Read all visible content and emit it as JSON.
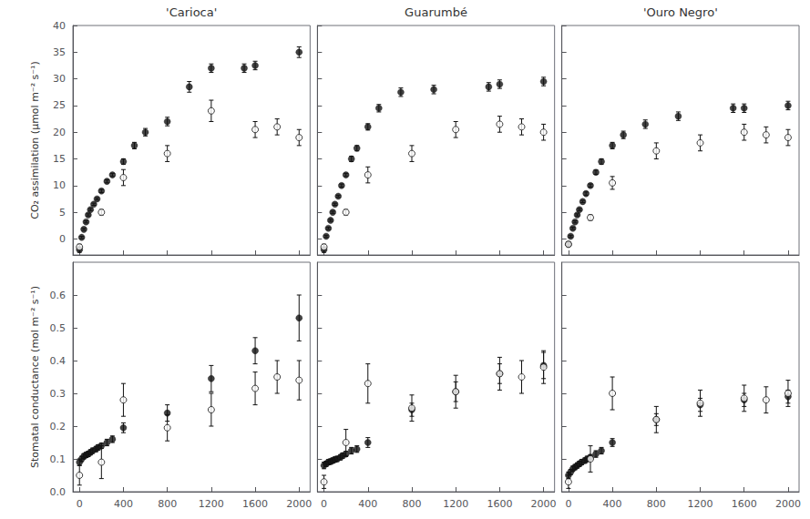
{
  "chart_data": [
    {
      "type": "scatter",
      "title": "'Carioca'",
      "ylabel": "CO₂ assimilation (μmol m⁻² s⁻¹)",
      "xlim": [
        -60,
        2100
      ],
      "xticks": [
        0,
        400,
        800,
        1200,
        1600,
        2000
      ],
      "ylim": [
        -3,
        40
      ],
      "yticks": [
        0,
        5,
        10,
        15,
        20,
        25,
        30,
        35,
        40
      ],
      "grid": false,
      "tick_labels": "y",
      "series": [
        {
          "color": "#111111",
          "marker": "filled_circle",
          "x": [
            0,
            20,
            40,
            60,
            80,
            100,
            130,
            160,
            200,
            250,
            300,
            400,
            500,
            600,
            800,
            1000,
            1200,
            1500,
            1600,
            2000
          ],
          "values": [
            -2.0,
            0.3,
            1.8,
            3.2,
            4.5,
            5.5,
            6.5,
            7.5,
            9.0,
            10.8,
            12.0,
            14.5,
            17.5,
            20.0,
            22.0,
            28.5,
            32.0,
            32.0,
            32.5,
            35.0
          ],
          "yerr": [
            0.5,
            0.2,
            0.2,
            0.2,
            0.2,
            0.2,
            0.2,
            0.2,
            0.3,
            0.3,
            0.3,
            0.5,
            0.6,
            0.7,
            0.8,
            1.0,
            0.8,
            0.8,
            0.8,
            1.0
          ]
        },
        {
          "color": "#111111",
          "marker": "open_circle",
          "x": [
            0,
            200,
            400,
            800,
            1200,
            1600,
            1800,
            2000
          ],
          "values": [
            -1.5,
            5.0,
            11.5,
            16.0,
            24.0,
            20.5,
            21.0,
            19.0
          ],
          "yerr": [
            0.5,
            0.5,
            1.5,
            1.5,
            2.0,
            1.5,
            1.5,
            1.5
          ]
        }
      ]
    },
    {
      "type": "scatter",
      "ylabel": "Stomatal conductance (mol m⁻² s⁻¹)",
      "xlim": [
        -60,
        2100
      ],
      "xticks": [
        0,
        400,
        800,
        1200,
        1600,
        2000
      ],
      "ylim": [
        0.0,
        0.7
      ],
      "yticks": [
        {
          "value": 0.0,
          "label": "0.0"
        },
        0.1,
        0.2,
        0.3,
        0.4,
        0.5,
        0.6
      ],
      "grid": false,
      "series": [
        {
          "color": "#111111",
          "marker": "filled_circle",
          "x": [
            0,
            20,
            40,
            60,
            80,
            100,
            120,
            150,
            170,
            200,
            250,
            300,
            400,
            800,
            1200,
            1600,
            2000
          ],
          "values": [
            0.09,
            0.1,
            0.108,
            0.112,
            0.115,
            0.12,
            0.125,
            0.13,
            0.135,
            0.14,
            0.15,
            0.16,
            0.195,
            0.24,
            0.345,
            0.43,
            0.53
          ],
          "yerr": [
            0.01,
            0.008,
            0.008,
            0.008,
            0.008,
            0.008,
            0.008,
            0.008,
            0.008,
            0.008,
            0.01,
            0.01,
            0.015,
            0.025,
            0.04,
            0.04,
            0.07
          ]
        },
        {
          "color": "#111111",
          "marker": "open_circle",
          "x": [
            0,
            200,
            400,
            800,
            1200,
            1600,
            1800,
            2000
          ],
          "values": [
            0.05,
            0.09,
            0.28,
            0.195,
            0.25,
            0.315,
            0.35,
            0.34
          ],
          "yerr": [
            0.03,
            0.05,
            0.05,
            0.04,
            0.05,
            0.05,
            0.05,
            0.06
          ]
        }
      ]
    },
    {
      "type": "scatter",
      "title": "Guarumbé",
      "xlim": [
        -60,
        2100
      ],
      "xticks": [
        0,
        400,
        800,
        1200,
        1600,
        2000
      ],
      "ylim": [
        -3,
        40
      ],
      "yticks": [
        0,
        5,
        10,
        15,
        20,
        25,
        30,
        35,
        40
      ],
      "grid": false,
      "tick_labels": false,
      "series": [
        {
          "color": "#111111",
          "marker": "filled_circle",
          "x": [
            0,
            20,
            40,
            60,
            80,
            100,
            130,
            160,
            200,
            250,
            300,
            400,
            500,
            700,
            1000,
            1500,
            1600,
            2000
          ],
          "values": [
            -2.0,
            0.5,
            2.0,
            3.5,
            5.0,
            6.5,
            8.0,
            10.0,
            12.0,
            15.0,
            17.0,
            21.0,
            24.5,
            27.5,
            28.0,
            28.5,
            29.0,
            29.5
          ],
          "yerr": [
            0.5,
            0.2,
            0.2,
            0.2,
            0.2,
            0.2,
            0.2,
            0.3,
            0.3,
            0.5,
            0.5,
            0.6,
            0.7,
            0.8,
            0.8,
            0.8,
            0.8,
            0.8
          ]
        },
        {
          "color": "#111111",
          "marker": "open_circle",
          "x": [
            0,
            200,
            400,
            800,
            1200,
            1600,
            1800,
            2000
          ],
          "values": [
            -1.5,
            5.0,
            12.0,
            16.0,
            20.5,
            21.5,
            21.0,
            20.0
          ],
          "yerr": [
            0.5,
            0.5,
            1.5,
            1.5,
            1.5,
            1.5,
            1.5,
            1.5
          ]
        }
      ]
    },
    {
      "type": "scatter",
      "xlim": [
        -60,
        2100
      ],
      "xticks": [
        0,
        400,
        800,
        1200,
        1600,
        2000
      ],
      "ylim": [
        0.0,
        0.7
      ],
      "yticks": [
        {
          "value": 0.0,
          "label": "0.0"
        },
        0.1,
        0.2,
        0.3,
        0.4,
        0.5,
        0.6
      ],
      "grid": false,
      "tick_labels": "x",
      "series": [
        {
          "color": "#111111",
          "marker": "filled_circle",
          "x": [
            0,
            20,
            40,
            60,
            80,
            100,
            120,
            150,
            170,
            200,
            250,
            300,
            400,
            800,
            1200,
            1600,
            2000
          ],
          "values": [
            0.08,
            0.085,
            0.09,
            0.092,
            0.095,
            0.098,
            0.1,
            0.105,
            0.11,
            0.115,
            0.125,
            0.13,
            0.15,
            0.25,
            0.305,
            0.36,
            0.385
          ],
          "yerr": [
            0.01,
            0.008,
            0.008,
            0.008,
            0.008,
            0.008,
            0.008,
            0.008,
            0.008,
            0.008,
            0.01,
            0.01,
            0.015,
            0.02,
            0.03,
            0.03,
            0.04
          ]
        },
        {
          "color": "#111111",
          "marker": "open_circle",
          "x": [
            0,
            200,
            400,
            800,
            1200,
            1600,
            1800,
            2000
          ],
          "values": [
            0.03,
            0.15,
            0.33,
            0.255,
            0.305,
            0.36,
            0.35,
            0.38
          ],
          "yerr": [
            0.02,
            0.04,
            0.06,
            0.04,
            0.05,
            0.05,
            0.05,
            0.05
          ]
        }
      ]
    },
    {
      "type": "scatter",
      "title": "'Ouro Negro'",
      "xlim": [
        -60,
        2100
      ],
      "xticks": [
        0,
        400,
        800,
        1200,
        1600,
        2000
      ],
      "ylim": [
        -3,
        40
      ],
      "yticks": [
        0,
        5,
        10,
        15,
        20,
        25,
        30,
        35,
        40
      ],
      "grid": false,
      "tick_labels": false,
      "series": [
        {
          "color": "#111111",
          "marker": "filled_circle",
          "x": [
            0,
            20,
            40,
            60,
            80,
            100,
            130,
            160,
            200,
            250,
            300,
            400,
            500,
            700,
            1000,
            1500,
            1600,
            2000
          ],
          "values": [
            -1.0,
            0.5,
            2.0,
            3.2,
            4.5,
            5.5,
            7.0,
            8.5,
            10.0,
            12.5,
            14.5,
            17.5,
            19.5,
            21.5,
            23.0,
            24.5,
            24.5,
            25.0
          ],
          "yerr": [
            0.4,
            0.2,
            0.2,
            0.2,
            0.2,
            0.2,
            0.2,
            0.3,
            0.3,
            0.4,
            0.5,
            0.6,
            0.7,
            0.8,
            0.8,
            0.8,
            0.8,
            0.8
          ]
        },
        {
          "color": "#111111",
          "marker": "open_circle",
          "x": [
            0,
            200,
            400,
            800,
            1200,
            1600,
            1800,
            2000
          ],
          "values": [
            -1.0,
            4.0,
            10.5,
            16.5,
            18.0,
            20.0,
            19.5,
            19.0
          ],
          "yerr": [
            0.4,
            0.5,
            1.2,
            1.5,
            1.5,
            1.5,
            1.5,
            1.5
          ]
        }
      ]
    },
    {
      "type": "scatter",
      "xlim": [
        -60,
        2100
      ],
      "xticks": [
        0,
        400,
        800,
        1200,
        1600,
        2000
      ],
      "ylim": [
        0.0,
        0.7
      ],
      "yticks": [
        {
          "value": 0.0,
          "label": "0.0"
        },
        0.1,
        0.2,
        0.3,
        0.4,
        0.5,
        0.6
      ],
      "grid": false,
      "tick_labels": "x",
      "series": [
        {
          "color": "#111111",
          "marker": "filled_circle",
          "x": [
            0,
            20,
            40,
            60,
            80,
            100,
            120,
            150,
            170,
            200,
            250,
            300,
            400,
            800,
            1200,
            1600,
            2000
          ],
          "values": [
            0.05,
            0.06,
            0.07,
            0.075,
            0.08,
            0.085,
            0.09,
            0.095,
            0.1,
            0.105,
            0.115,
            0.125,
            0.15,
            0.22,
            0.265,
            0.28,
            0.29
          ],
          "yerr": [
            0.01,
            0.008,
            0.008,
            0.008,
            0.008,
            0.008,
            0.008,
            0.008,
            0.008,
            0.008,
            0.01,
            0.01,
            0.012,
            0.018,
            0.02,
            0.02,
            0.02
          ]
        },
        {
          "color": "#111111",
          "marker": "open_circle",
          "x": [
            0,
            200,
            400,
            800,
            1200,
            1600,
            1800,
            2000
          ],
          "values": [
            0.03,
            0.1,
            0.3,
            0.22,
            0.27,
            0.285,
            0.28,
            0.3
          ],
          "yerr": [
            0.02,
            0.04,
            0.05,
            0.04,
            0.04,
            0.04,
            0.04,
            0.04
          ]
        }
      ]
    }
  ]
}
